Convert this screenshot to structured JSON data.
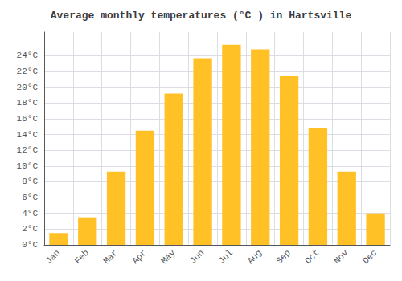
{
  "chart_data": {
    "type": "bar",
    "title": "Average monthly temperatures (°C ) in Hartsville",
    "categories": [
      "Jan",
      "Feb",
      "Mar",
      "Apr",
      "May",
      "Jun",
      "Jul",
      "Aug",
      "Sep",
      "Oct",
      "Nov",
      "Dec"
    ],
    "values": [
      1.5,
      3.5,
      9.3,
      14.5,
      19.2,
      23.7,
      25.4,
      24.8,
      21.4,
      14.8,
      9.3,
      4.0
    ],
    "color": "#FFC125",
    "ylim": [
      0,
      27
    ],
    "yticks": [
      {
        "value": 0,
        "label": "0°C"
      },
      {
        "value": 2,
        "label": "2°C"
      },
      {
        "value": 4,
        "label": "4°C"
      },
      {
        "value": 6,
        "label": "6°C"
      },
      {
        "value": 8,
        "label": "8°C"
      },
      {
        "value": 10,
        "label": "10°C"
      },
      {
        "value": 12,
        "label": "12°C"
      },
      {
        "value": 14,
        "label": "14°C"
      },
      {
        "value": 16,
        "label": "16°C"
      },
      {
        "value": 18,
        "label": "18°C"
      },
      {
        "value": 20,
        "label": "20°C"
      },
      {
        "value": 22,
        "label": "22°C"
      },
      {
        "value": 24,
        "label": "24°C"
      }
    ],
    "grid": true
  }
}
